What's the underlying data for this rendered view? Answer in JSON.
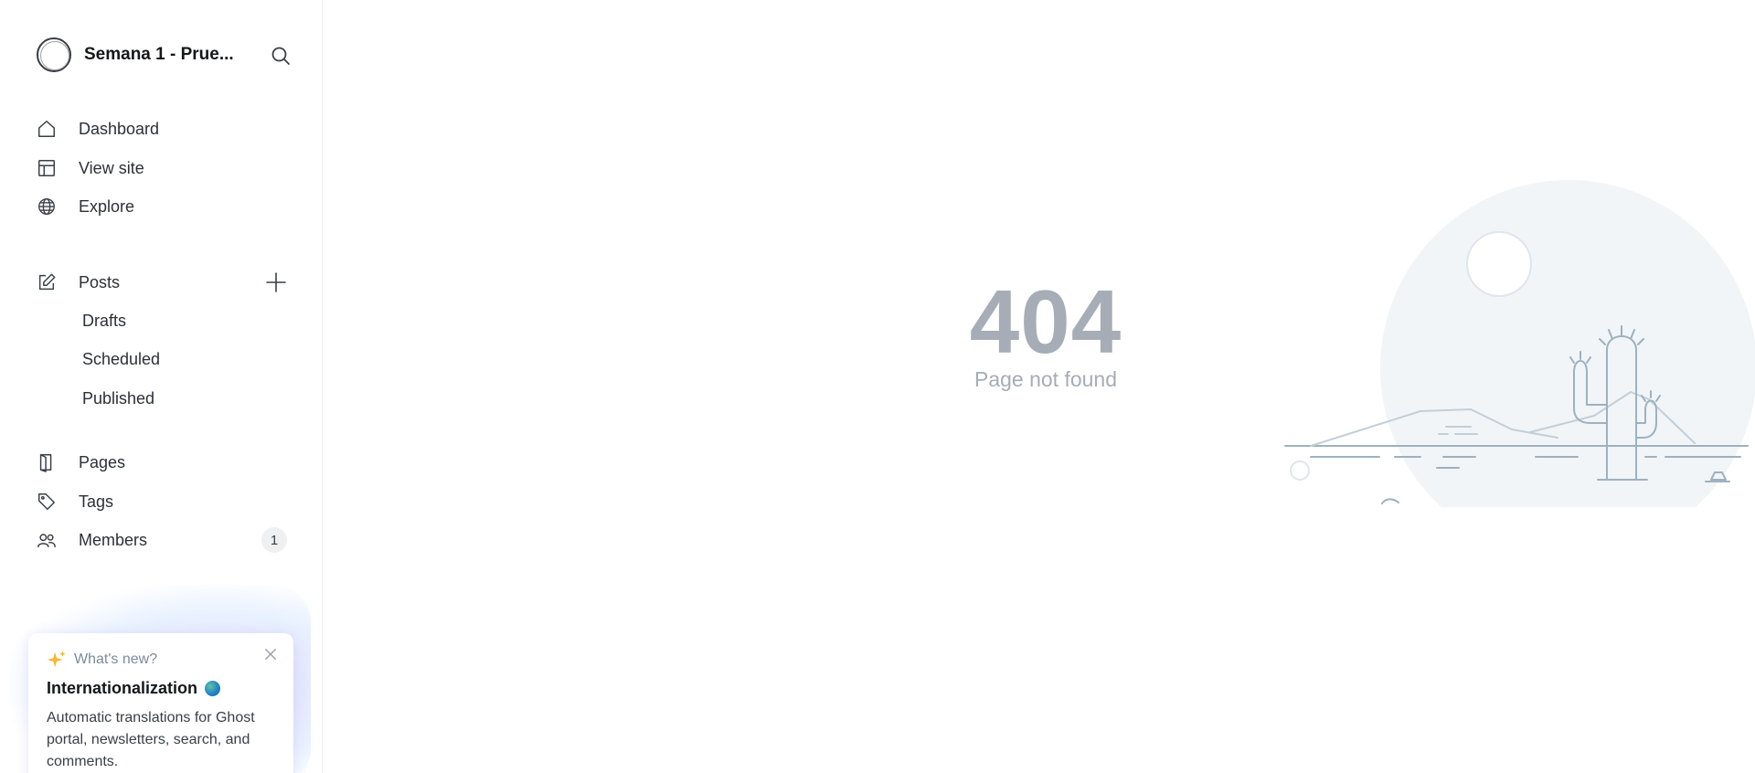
{
  "sidebar": {
    "site_title": "Semana 1 - Prue...",
    "nav": [
      {
        "label": "Dashboard"
      },
      {
        "label": "View site"
      },
      {
        "label": "Explore"
      }
    ],
    "posts": {
      "label": "Posts",
      "sub": [
        {
          "label": "Drafts"
        },
        {
          "label": "Scheduled"
        },
        {
          "label": "Published"
        }
      ]
    },
    "more": [
      {
        "label": "Pages"
      },
      {
        "label": "Tags"
      },
      {
        "label": "Members",
        "count": "1"
      }
    ]
  },
  "whats_new": {
    "kicker": "What's new?",
    "title": "Internationalization",
    "body": "Automatic translations for Ghost portal, newsletters, search, and comments."
  },
  "error": {
    "code": "404",
    "message": "Page not found"
  },
  "colors": {
    "accent_sparkle": "#f5b82e",
    "error_text": "#a6adb6",
    "illustration_line": "#9fb1be",
    "illustration_fill": "#f1f5f8"
  }
}
